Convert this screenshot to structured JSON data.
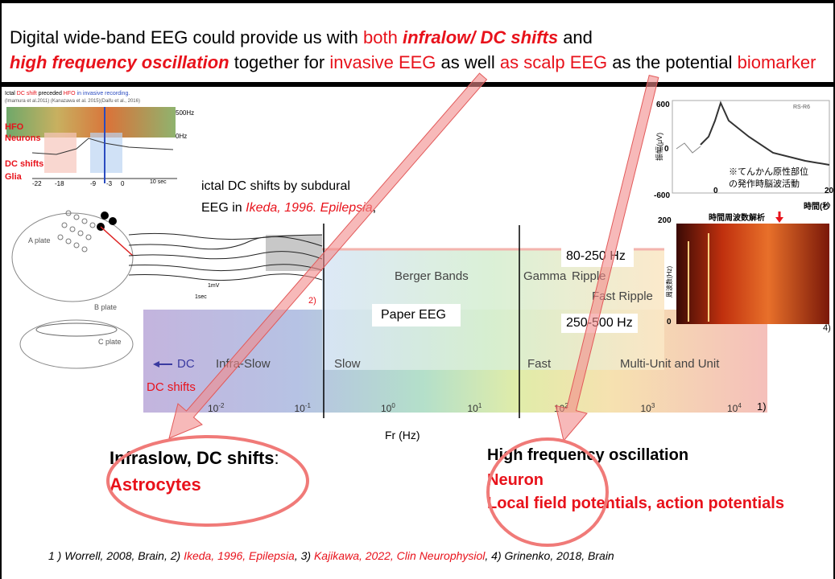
{
  "title": [
    {
      "text": "Digital wide-band EEG could provide us with "
    },
    {
      "text": "both ",
      "color": "#e8121b"
    },
    {
      "text": "infralow/ DC shifts",
      "color": "#e8121b",
      "bold": true,
      "italic": true
    },
    {
      "text": " and "
    },
    {
      "text": "high frequency oscillation",
      "color": "#e8121b",
      "bold": true,
      "italic": true
    },
    {
      "text": " together for "
    },
    {
      "text": "invasive EEG",
      "color": "#e8121b"
    },
    {
      "text": " as well "
    },
    {
      "text": "as scalp EEG",
      "color": "#e8121b"
    },
    {
      "text": " as the potential "
    },
    {
      "text": "biomarker",
      "color": "#e8121b"
    }
  ],
  "left_figure": {
    "caption": [
      {
        "text": "Ictal "
      },
      {
        "text": "DC shift",
        "color": "#e8121b"
      },
      {
        "text": " preceded "
      },
      {
        "text": "HFO",
        "color": "#e8121b"
      },
      {
        "text": " in invasive recording.",
        "color": "#2a4bc0"
      }
    ],
    "citation": "(Imamura et al.2011) (Kanazawa et al. 2015)(Daifu et al., 2016)",
    "hfo": "HFO",
    "neurons": "Neurons",
    "dc_shifts": "DC shifts",
    "glia": "Glia",
    "freq_top": "500Hz",
    "freq_bottom": "0Hz",
    "scale": "10 sec",
    "time_ticks": [
      "-22",
      "-18",
      "-9",
      "-3",
      "0"
    ],
    "plate_a": "A plate",
    "plate_b": "B plate",
    "plate_c": "C plate"
  },
  "ikeda_note": {
    "line1": "ictal DC shifts by subdural",
    "line2": [
      {
        "text": "EEG in "
      },
      {
        "text": "Ikeda, 1996. Epilepsia",
        "color": "#e8121b",
        "italic": true
      },
      {
        "text": ","
      }
    ]
  },
  "trace": {
    "scale_v": "1mV",
    "scale_t": "1sec",
    "ref": "2)"
  },
  "spectrum": {
    "dc": "DC",
    "infra_slow": "Infra-Slow",
    "slow": "Slow",
    "fast": "Fast",
    "unit": "Multi-Unit and Unit",
    "dc_shifts": "DC shifts",
    "berger": "Berger Bands",
    "gamma": "Gamma",
    "ripple": "Ripple",
    "fast_ripple": "Fast Ripple",
    "paper_eeg": "Paper EEG",
    "ripple_range": "80-250 Hz",
    "fast_ripple_range": "250-500 Hz",
    "ticks": [
      {
        "base": "10",
        "exp": "-2"
      },
      {
        "base": "10",
        "exp": "-1"
      },
      {
        "base": "10",
        "exp": "0"
      },
      {
        "base": "10",
        "exp": "1"
      },
      {
        "base": "10",
        "exp": "2"
      },
      {
        "base": "10",
        "exp": "3"
      },
      {
        "base": "10",
        "exp": "4"
      }
    ],
    "ref": "1)",
    "axis_label": "Fr (Hz)"
  },
  "right_figure": {
    "y_top": "600",
    "y_mid": "0",
    "y_bottom": "-600",
    "x_zero": "0",
    "x_next": "20",
    "y_label": "振幅(μV)",
    "note1": "※てんかん原性部位",
    "note2": "の発作時脳波活動",
    "x_label": "時間(秒",
    "channel": "RS-R6",
    "tf_title": "時間周波数解析",
    "freq_label": "周波数(Hz)",
    "f_top": "200",
    "f_bottom": "0",
    "ref": "4)"
  },
  "left_conclusion": {
    "heading": "Infraslow, DC shifts",
    "colon": ":",
    "cell": "Astrocytes"
  },
  "right_conclusion": {
    "heading": "High frequency oscillation",
    "cell": "Neuron",
    "detail": "Local field potentials, action potentials"
  },
  "footer": [
    {
      "text": "1 ) Worrell, 2008, Brain, 2) "
    },
    {
      "text": "Ikeda, 1996, Epilepsia",
      "color": "#e8121b"
    },
    {
      "text": ", 3) "
    },
    {
      "text": "Kajikawa, 2022, Clin Neurophysiol",
      "color": "#e8121b"
    },
    {
      "text": ", 4) Grinenko, 2018, Brain"
    }
  ]
}
